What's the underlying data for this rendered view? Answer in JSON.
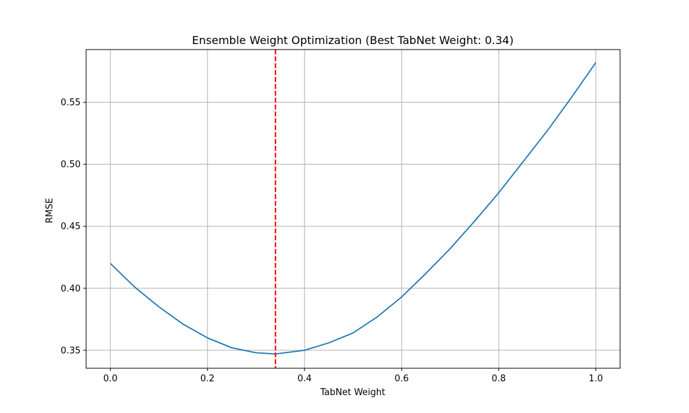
{
  "chart_data": {
    "type": "line",
    "title": "Ensemble Weight Optimization (Best TabNet Weight: 0.34)",
    "xlabel": "TabNet Weight",
    "ylabel": "RMSE",
    "xlim": [
      -0.05,
      1.05
    ],
    "ylim": [
      0.3355,
      0.5925
    ],
    "grid": true,
    "xticks": [
      0.0,
      0.2,
      0.4,
      0.6,
      0.8,
      1.0
    ],
    "xtick_labels": [
      "0.0",
      "0.2",
      "0.4",
      "0.6",
      "0.8",
      "1.0"
    ],
    "yticks": [
      0.35,
      0.4,
      0.45,
      0.5,
      0.55
    ],
    "ytick_labels": [
      "0.35",
      "0.40",
      "0.45",
      "0.50",
      "0.55"
    ],
    "series": [
      {
        "color": "#1f77b4",
        "x": [
          0.0,
          0.05,
          0.1,
          0.15,
          0.2,
          0.25,
          0.3,
          0.34,
          0.4,
          0.45,
          0.5,
          0.55,
          0.6,
          0.65,
          0.7,
          0.75,
          0.8,
          0.85,
          0.9,
          0.95,
          1.0
        ],
        "y": [
          0.42,
          0.401,
          0.385,
          0.371,
          0.36,
          0.352,
          0.348,
          0.347,
          0.35,
          0.356,
          0.364,
          0.377,
          0.393,
          0.412,
          0.432,
          0.454,
          0.477,
          0.502,
          0.527,
          0.554,
          0.582
        ]
      }
    ],
    "reference_line": {
      "orientation": "vertical",
      "x": 0.34,
      "color": "#ff0000",
      "style": "dashed"
    }
  }
}
